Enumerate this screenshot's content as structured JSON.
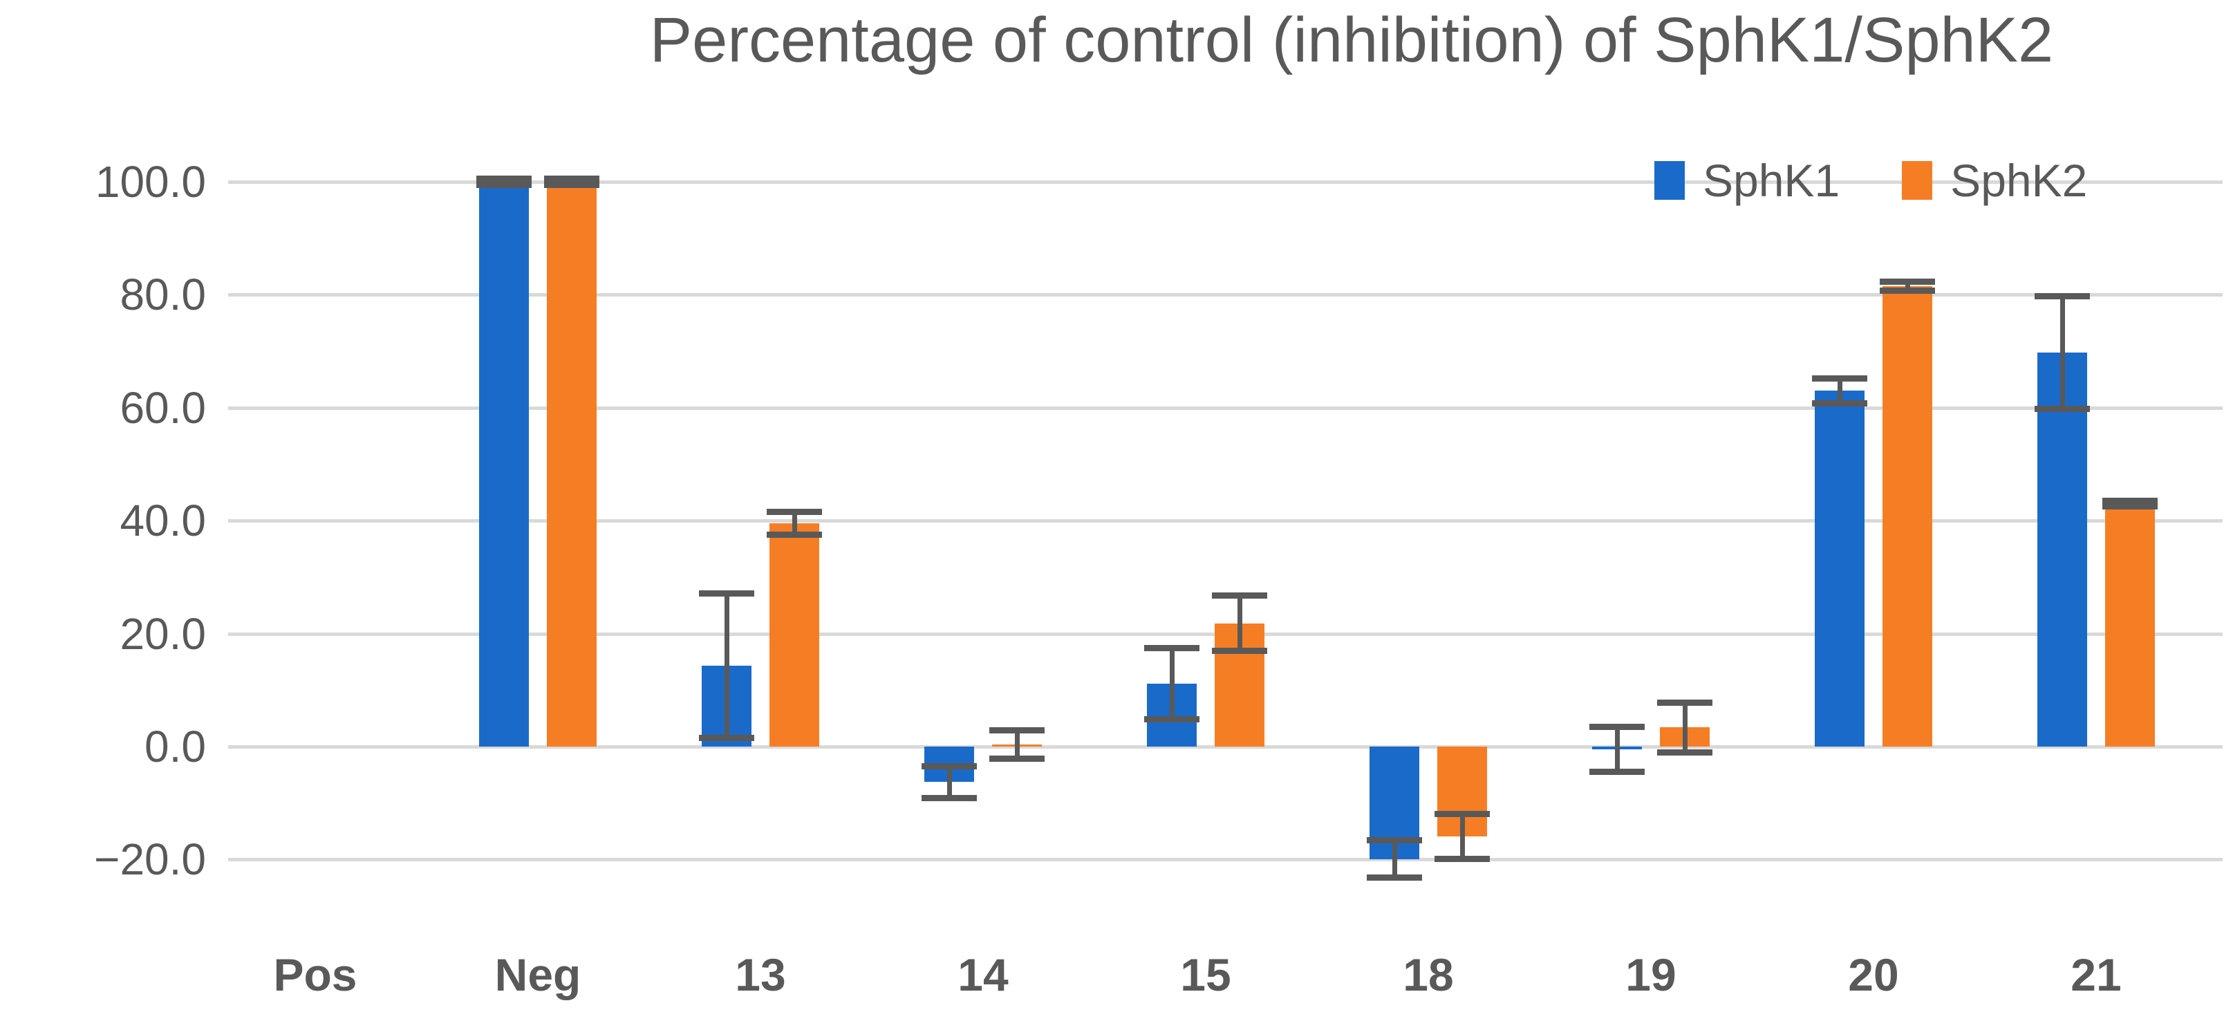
{
  "title": "Percentage of control (inhibition) of SphK1/SphK2",
  "colors": {
    "sphk1_blue": "#1a6ac9",
    "sphk2_orange": "#f57e25",
    "error_bar": "#595959",
    "gridline": "#d9d9d9",
    "text": "#595959"
  },
  "legend": {
    "position": "top-right",
    "items": [
      {
        "label": "SphK1",
        "swatch": "blue-square-icon"
      },
      {
        "label": "SphK2",
        "swatch": "orange-square-icon"
      }
    ]
  },
  "chart_data": {
    "type": "bar",
    "title": "Percentage of control (inhibition) of SphK1/SphK2",
    "categories": [
      "Pos",
      "Neg",
      "13",
      "14",
      "15",
      "18",
      "19",
      "20",
      "21"
    ],
    "series": [
      {
        "name": "SphK1",
        "color": "#1a6ac9",
        "values": [
          0,
          100.0,
          14.3,
          -6.3,
          11.1,
          -19.9,
          -0.5,
          63.0,
          69.8
        ],
        "errors": [
          0,
          0.5,
          12.8,
          2.8,
          6.3,
          3.3,
          4.0,
          2.2,
          10.0
        ]
      },
      {
        "name": "SphK2",
        "color": "#f57e25",
        "values": [
          0,
          100.0,
          39.5,
          0.4,
          21.8,
          -15.9,
          3.4,
          81.5,
          43.0
        ],
        "errors": [
          0,
          0.5,
          2.0,
          2.5,
          4.9,
          4.0,
          4.4,
          0.8,
          0.5
        ]
      }
    ],
    "xlabel": "",
    "ylabel": "",
    "ylim": [
      -20,
      100
    ],
    "yticks": [
      100,
      80,
      60,
      40,
      20,
      0,
      -20
    ],
    "ytick_labels": [
      "100.0",
      "80.0",
      "60.0",
      "40.0",
      "20.0",
      "0.0",
      "−20.0"
    ],
    "grid": true,
    "error_bars": true,
    "legend_position": "top-right"
  }
}
